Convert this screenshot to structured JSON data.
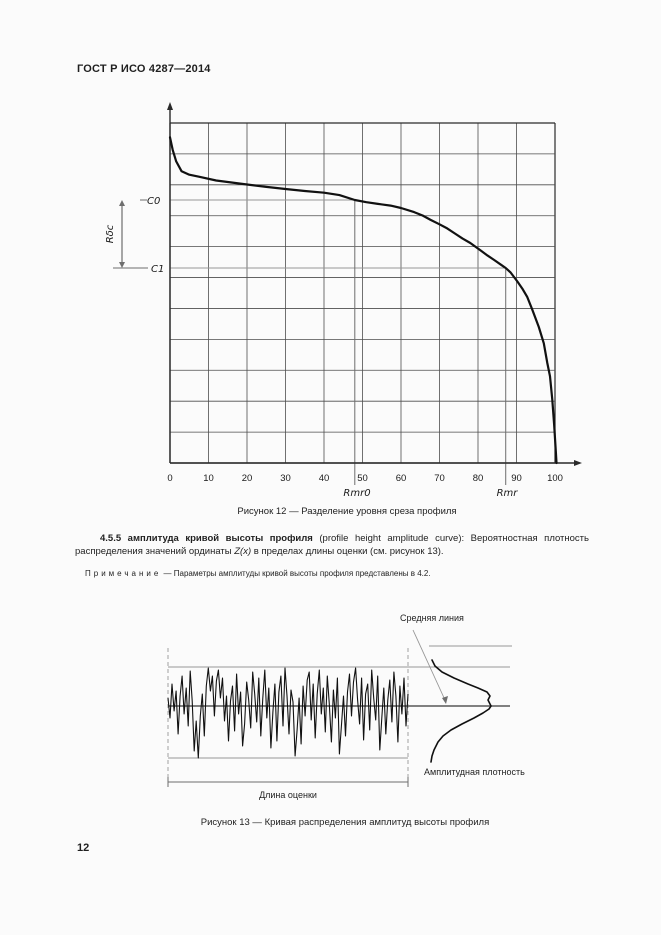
{
  "page": {
    "header": "ГОСТ Р ИСО 4287—2014",
    "number": "12"
  },
  "colors": {
    "text": "#1f1f1f",
    "border_line": "#2a2a2a",
    "grid_line": "#4d4d4d",
    "light_line": "#979797",
    "marker_line": "#6e6e6e",
    "curve": "#111111"
  },
  "section_455": {
    "num_term": "4.5.5 амплитуда кривой высоты профиля",
    "rest1": " (profile height amplitude curve): Вероятностная плотность распределения значений ординаты ",
    "zx": "Z(x)",
    "rest2": " в пределах длины оценки (см. рисунок 13)."
  },
  "note": {
    "label": "Примечание",
    "dash": " — ",
    "text": "Параметры амплитуды кривой высоты профиля представлены в 4.2."
  },
  "figure12": {
    "caption": "Рисунок 12 — Разделение уровня среза профиля",
    "labels": {
      "c0": "C0",
      "c1": "C1",
      "rdc": "Rδc",
      "rmr0": "Rmr0",
      "rmr": "Rmr"
    }
  },
  "figure13": {
    "caption": "Рисунок 13 — Кривая распределения амплитуд высоты профиля",
    "labels": {
      "mean_line": "Средняя линия",
      "amplitude_density": "Амплитудная плотность",
      "evaluation_length": "Длина оценки"
    }
  },
  "chart_data": [
    {
      "type": "line",
      "title": "Разделение уровня среза профиля",
      "xlabel": "",
      "ylabel": "",
      "x_range": [
        0,
        105
      ],
      "x_ticks": [
        "0",
        "10",
        "20",
        "30",
        "40",
        "50",
        "60",
        "70",
        "80",
        "90",
        "100"
      ],
      "grid": true,
      "n_rows": 11,
      "n_cols": 10,
      "y_axis_level_labels": [
        "C0",
        "C1"
      ],
      "x_axis_annotations": [
        "Rmr0",
        "Rmr"
      ],
      "levels": {
        "c0": {
          "y_frac": 0.2265,
          "rmr_percent": 48
        },
        "c1": {
          "y_frac": 0.4265,
          "rmr_percent": 87.2
        }
      },
      "series": [
        {
          "name": "material-ratio-curve",
          "points": [
            [
              0,
              0.042
            ],
            [
              0.7,
              0.079
            ],
            [
              1.6,
              0.113
            ],
            [
              3,
              0.142
            ],
            [
              5,
              0.152
            ],
            [
              7.5,
              0.158
            ],
            [
              12,
              0.169
            ],
            [
              16,
              0.175
            ],
            [
              20,
              0.181
            ],
            [
              25,
              0.188
            ],
            [
              30,
              0.194
            ],
            [
              35,
              0.2
            ],
            [
              40,
              0.205
            ],
            [
              44,
              0.212
            ],
            [
              48,
              0.2265
            ],
            [
              51,
              0.233
            ],
            [
              54,
              0.238
            ],
            [
              57.3,
              0.243
            ],
            [
              60,
              0.25
            ],
            [
              63.4,
              0.262
            ],
            [
              65.6,
              0.272
            ],
            [
              67.7,
              0.285
            ],
            [
              70,
              0.298
            ],
            [
              72,
              0.31
            ],
            [
              74,
              0.325
            ],
            [
              76,
              0.34
            ],
            [
              78,
              0.353
            ],
            [
              80.7,
              0.375
            ],
            [
              82.5,
              0.39
            ],
            [
              84.2,
              0.403
            ],
            [
              86,
              0.417
            ],
            [
              87.2,
              0.4265
            ],
            [
              88.5,
              0.44
            ],
            [
              90.2,
              0.466
            ],
            [
              91.5,
              0.487
            ],
            [
              92.8,
              0.512
            ],
            [
              94.1,
              0.549
            ],
            [
              95.8,
              0.6
            ],
            [
              97.1,
              0.648
            ],
            [
              98,
              0.706
            ],
            [
              98.7,
              0.745
            ],
            [
              99.3,
              0.814
            ],
            [
              99.8,
              0.89
            ],
            [
              100.2,
              0.965
            ],
            [
              100.4,
              1.0
            ]
          ]
        }
      ]
    },
    {
      "type": "line",
      "title": "Кривая распределения амплитуд высоты профиля",
      "profile_offsets": [
        8,
        -12,
        22,
        -5,
        15,
        -28,
        10,
        30,
        -8,
        18,
        -20,
        35,
        5,
        -45,
        -15,
        -52,
        -10,
        12,
        -30,
        20,
        38,
        15,
        30,
        -10,
        25,
        36,
        8,
        28,
        -15,
        10,
        -35,
        5,
        20,
        -25,
        32,
        -8,
        14,
        -40,
        -18,
        24,
        6,
        -22,
        34,
        12,
        -16,
        28,
        -30,
        8,
        36,
        -12,
        18,
        -42,
        -6,
        22,
        -35,
        14,
        30,
        -20,
        38,
        10,
        -28,
        16,
        4,
        -50,
        -24,
        8,
        -38,
        20,
        -10,
        26,
        34,
        -14,
        22,
        -32,
        12,
        36,
        -8,
        18,
        -26,
        30,
        2,
        -36,
        16,
        -12,
        28,
        -48,
        -20,
        10,
        -30,
        14,
        32,
        -10,
        24,
        38,
        6,
        -18,
        28,
        -34,
        12,
        22,
        -24,
        36,
        8,
        -14,
        30,
        -44,
        -12,
        18,
        -28,
        6,
        26,
        -16,
        34,
        10,
        -36,
        20,
        -8,
        28,
        -20,
        12
      ],
      "band": {
        "top_offset": 39,
        "bottom_offset": -52
      },
      "density_points": [
        [
          46,
          2
        ],
        [
          40,
          5
        ],
        [
          34,
          12
        ],
        [
          28,
          24
        ],
        [
          22,
          38
        ],
        [
          18,
          48
        ],
        [
          14,
          57
        ],
        [
          10,
          60
        ],
        [
          6,
          58
        ],
        [
          2,
          60
        ],
        [
          0,
          61
        ],
        [
          -3,
          59
        ],
        [
          -7,
          53
        ],
        [
          -12,
          44
        ],
        [
          -18,
          32
        ],
        [
          -24,
          21
        ],
        [
          -30,
          13
        ],
        [
          -36,
          8
        ],
        [
          -44,
          4
        ],
        [
          -50,
          2
        ],
        [
          -56,
          1
        ]
      ]
    }
  ]
}
